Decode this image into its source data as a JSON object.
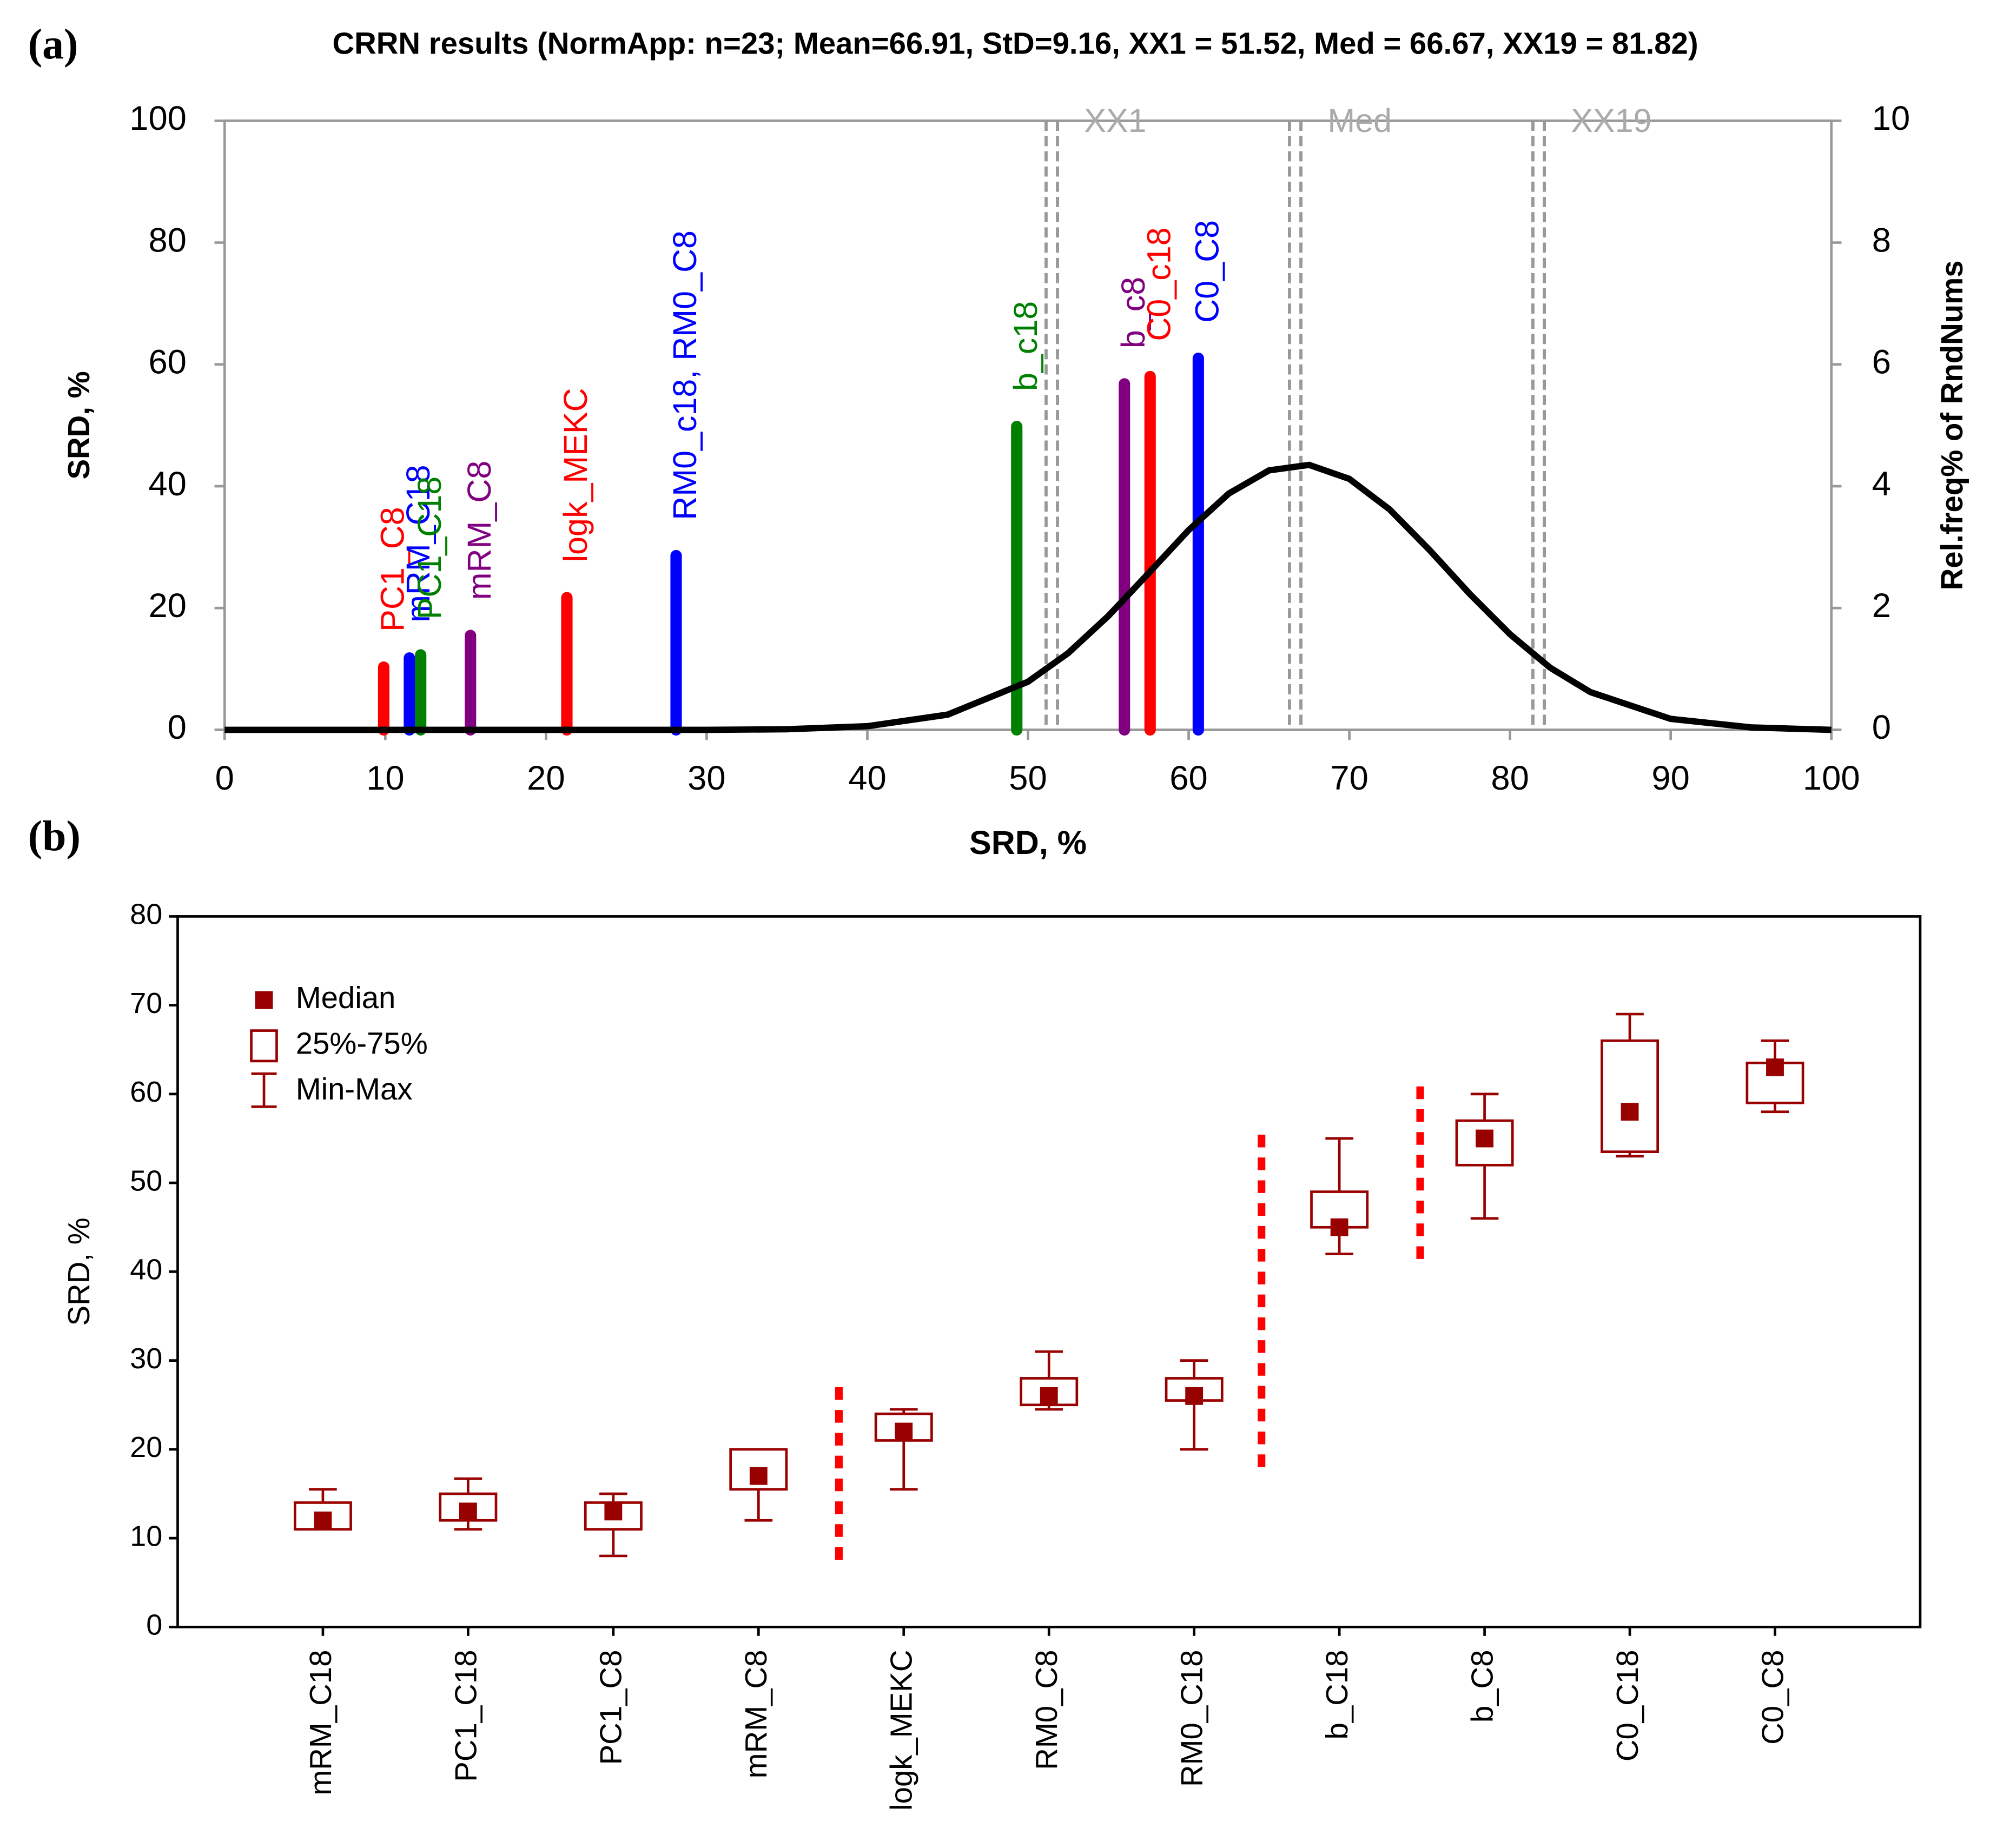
{
  "chart_data": [
    {
      "type": "bar",
      "panel": "(a)",
      "title": "CRRN results (NormApp: n=23; Mean=66.91, StD=9.16, XX1 = 51.52, Med = 66.67, XX19 = 81.82)",
      "xlabel": "SRD, %",
      "ylabel": "SRD, %",
      "y2label": "Rel.freq% of RndNums",
      "xlim": [
        0,
        100
      ],
      "xticks": [
        0,
        10,
        20,
        30,
        40,
        50,
        60,
        70,
        80,
        90,
        100
      ],
      "ylim": [
        0,
        100
      ],
      "yticks": [
        0,
        20,
        40,
        60,
        80,
        100
      ],
      "y2lim": [
        0,
        10
      ],
      "y2ticks": [
        0,
        2,
        4,
        6,
        8,
        10
      ],
      "series": [
        {
          "name": "PC1_C8",
          "color": "#ff0000",
          "x": [
            9.9
          ],
          "values": [
            10.3
          ]
        },
        {
          "name": "mRM_C18",
          "color": "#0000ff",
          "x": [
            11.5
          ],
          "values": [
            11.8
          ]
        },
        {
          "name": "PC1_C18",
          "color": "#008000",
          "x": [
            12.2
          ],
          "values": [
            12.3
          ]
        },
        {
          "name": "mRM_C8",
          "color": "#800080",
          "x": [
            15.3
          ],
          "values": [
            15.5
          ]
        },
        {
          "name": "logk_MEKC",
          "color": "#ff0000",
          "x": [
            21.3
          ],
          "values": [
            21.7
          ]
        },
        {
          "name": "RM0_c18, RM0_C8",
          "color": "#0000ff",
          "x": [
            28.1
          ],
          "values": [
            28.6
          ]
        },
        {
          "name": "b_c18",
          "color": "#008000",
          "x": [
            49.3
          ],
          "values": [
            49.8
          ]
        },
        {
          "name": "b_c8",
          "color": "#800080",
          "x": [
            56.0
          ],
          "values": [
            56.8
          ]
        },
        {
          "name": "C0_c18",
          "color": "#ff0000",
          "x": [
            57.6
          ],
          "values": [
            58.0
          ]
        },
        {
          "name": "C0_C8",
          "color": "#0000ff",
          "x": [
            60.6
          ],
          "values": [
            61.0
          ]
        }
      ],
      "curve": {
        "axis": "y2",
        "color": "#000000",
        "x": [
          0,
          10,
          20,
          30,
          35,
          40,
          45,
          50,
          52.5,
          55,
          57.5,
          60,
          62.5,
          65,
          67.5,
          70,
          72.5,
          75,
          77.5,
          80,
          82.5,
          85,
          90,
          95,
          100
        ],
        "values": [
          0,
          0,
          0,
          0,
          0.01,
          0.06,
          0.25,
          0.79,
          1.26,
          1.87,
          2.57,
          3.28,
          3.88,
          4.26,
          4.35,
          4.12,
          3.62,
          2.95,
          2.23,
          1.57,
          1.02,
          0.62,
          0.18,
          0.04,
          0
        ]
      },
      "vlines": [
        {
          "label": "XX1",
          "x": 51.52
        },
        {
          "label": "Med",
          "x": 66.67
        },
        {
          "label": "XX19",
          "x": 81.82
        }
      ]
    },
    {
      "type": "box",
      "panel": "(b)",
      "ylabel": "SRD, %",
      "ylim": [
        0,
        80
      ],
      "yticks": [
        0,
        10,
        20,
        30,
        40,
        50,
        60,
        70,
        80
      ],
      "color": "#990000",
      "legend": [
        "Median",
        "25%-75%",
        "Min-Max"
      ],
      "categories": [
        "mRM_C18",
        "PC1_C18",
        "PC1_C8",
        "mRM_C8",
        "logk_MEKC",
        "RM0_C8",
        "RM0_C18",
        "b_C18",
        "b_C8",
        "C0_C18",
        "C0_C8"
      ],
      "median": [
        12,
        13,
        13,
        17,
        22,
        26,
        26,
        45,
        55,
        58,
        63
      ],
      "q1": [
        11,
        12,
        11,
        15.5,
        21,
        25,
        25.5,
        45,
        52,
        53.5,
        59
      ],
      "q3": [
        14,
        15,
        14,
        20,
        24,
        28,
        28,
        49,
        57,
        66,
        63.5
      ],
      "min": [
        11,
        11,
        8,
        12,
        15.5,
        24.5,
        20,
        42,
        46,
        53,
        58
      ],
      "max": [
        15.5,
        16.7,
        15,
        20,
        24.5,
        31,
        30,
        55,
        60,
        69,
        66
      ]
    }
  ]
}
